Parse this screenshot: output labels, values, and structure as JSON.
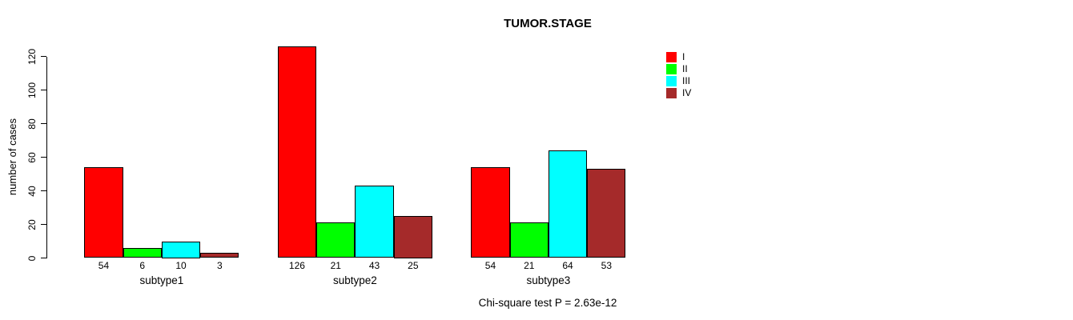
{
  "title": "TUMOR.STAGE",
  "y_axis": {
    "label": "number of cases"
  },
  "caption": "Chi-square test P = 2.63e-12",
  "chart_data": {
    "type": "bar",
    "title": "TUMOR.STAGE",
    "xlabel": "",
    "ylabel": "number of cases",
    "ylim": [
      0,
      120
    ],
    "yticks": [
      0,
      20,
      40,
      60,
      80,
      100,
      120
    ],
    "grid": false,
    "legend_position": "top-right",
    "categories": [
      "subtype1",
      "subtype2",
      "subtype3"
    ],
    "series": [
      {
        "name": "I",
        "color": "#FF0000",
        "values": [
          54,
          126,
          54
        ]
      },
      {
        "name": "II",
        "color": "#00FF00",
        "values": [
          6,
          21,
          21
        ]
      },
      {
        "name": "III",
        "color": "#00FFFF",
        "values": [
          10,
          43,
          64
        ]
      },
      {
        "name": "IV",
        "color": "#A52A2A",
        "values": [
          3,
          25,
          53
        ]
      }
    ],
    "bar_value_labels_shown": true,
    "annotation": "Chi-square test P = 2.63e-12"
  }
}
